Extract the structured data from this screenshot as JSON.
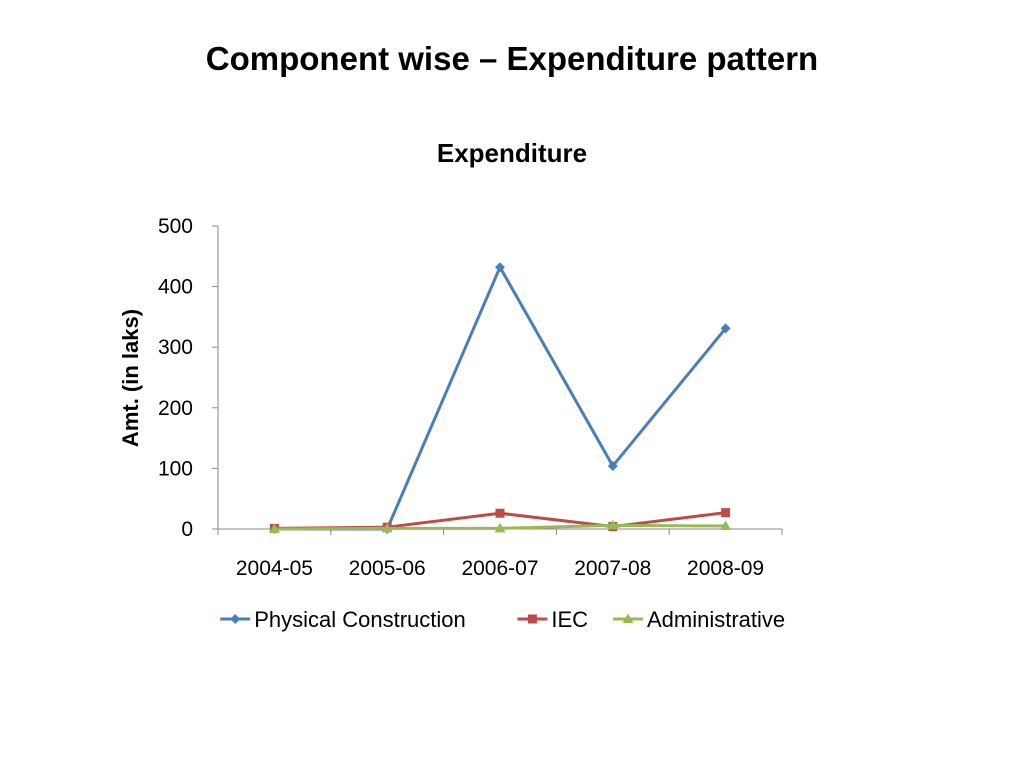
{
  "slide": {
    "title": "Component wise – Expenditure pattern"
  },
  "chart_data": {
    "type": "line",
    "title": "Expenditure",
    "xlabel": "",
    "ylabel": "Amt. (in laks)",
    "categories": [
      "2004-05",
      "2005-06",
      "2006-07",
      "2007-08",
      "2008-09"
    ],
    "ylim": [
      0,
      500
    ],
    "yticks": [
      0,
      100,
      200,
      300,
      400,
      500
    ],
    "grid": false,
    "legend_position": "bottom",
    "series": [
      {
        "name": "Physical Construction",
        "color": "#4a7ebb",
        "marker": "diamond",
        "values": [
          0,
          0,
          432,
          104,
          331
        ]
      },
      {
        "name": "IEC",
        "color": "#be4b48",
        "marker": "square",
        "values": [
          1,
          3,
          26,
          4,
          27
        ]
      },
      {
        "name": "Administrative",
        "color": "#98b954",
        "marker": "triangle",
        "values": [
          0,
          1,
          1,
          6,
          5
        ]
      }
    ]
  }
}
